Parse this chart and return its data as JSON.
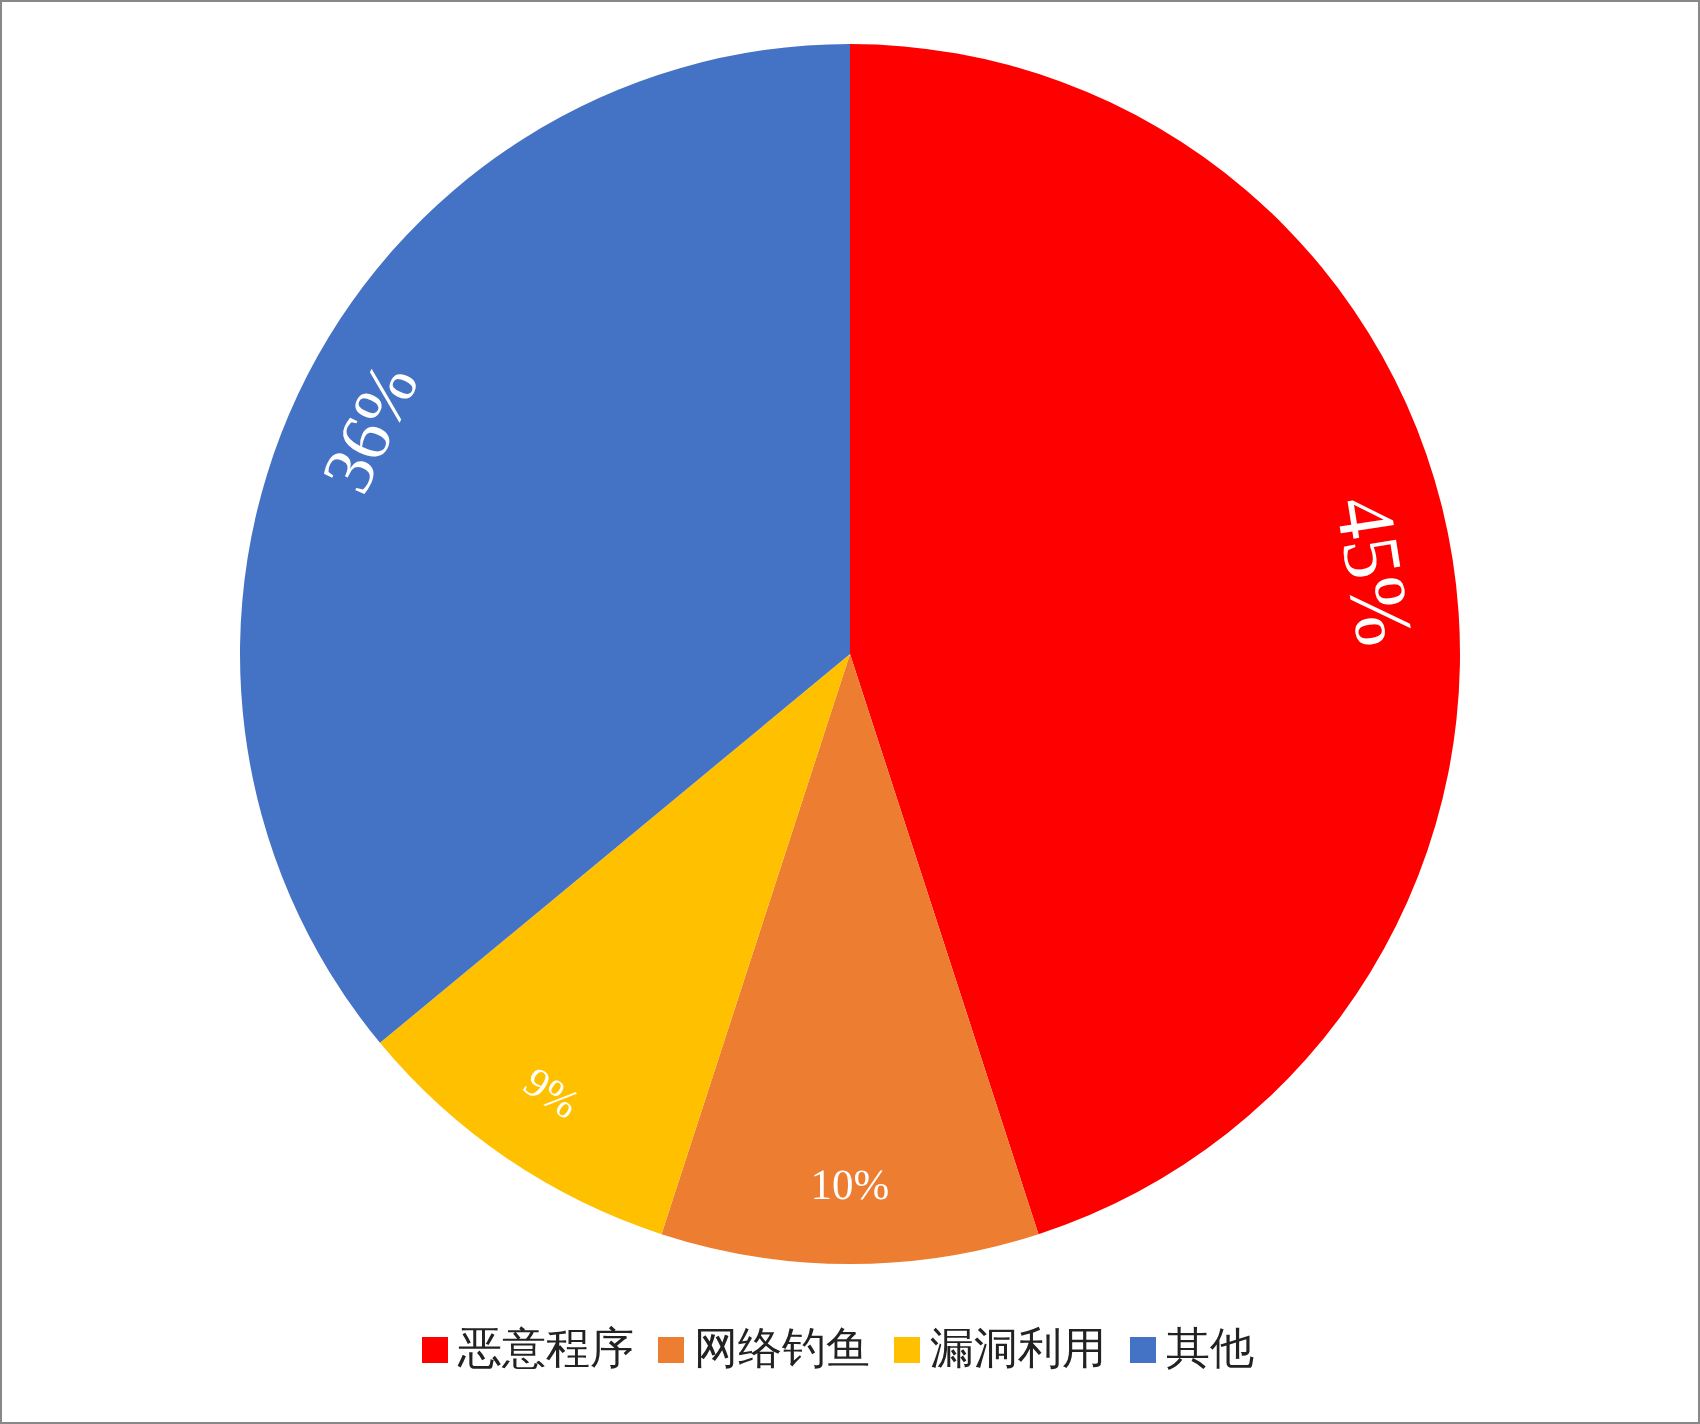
{
  "chart_data": {
    "type": "pie",
    "categories": [
      "恶意程序",
      "网络钓鱼",
      "漏洞利用",
      "其他"
    ],
    "values": [
      45,
      10,
      9,
      36
    ],
    "colors": [
      "#ff0000",
      "#ed7d31",
      "#ffc000",
      "#4472c4"
    ],
    "value_labels": [
      "45%",
      "10%",
      "9%",
      "36%"
    ],
    "legend": "bottom"
  }
}
